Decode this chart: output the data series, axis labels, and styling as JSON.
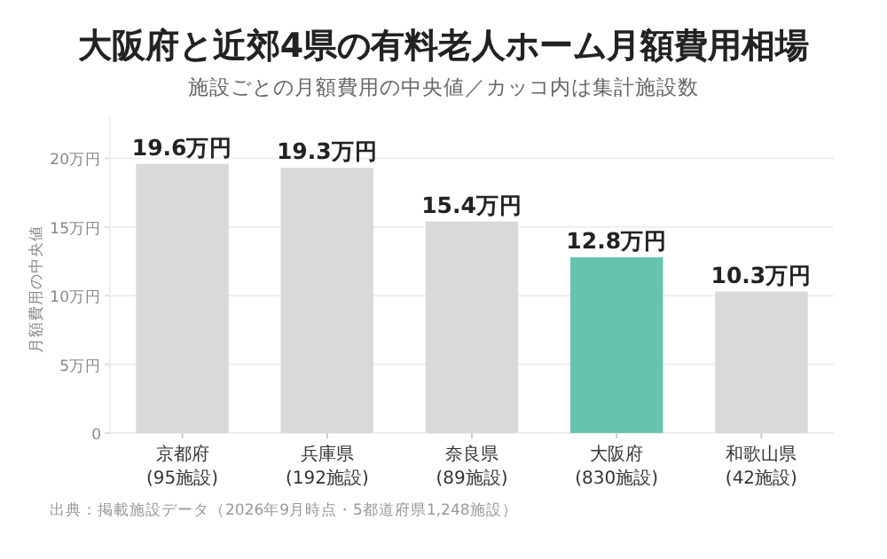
{
  "chart_data": {
    "type": "bar",
    "title": "大阪府と近郊4県の有料老人ホーム月額費用相場",
    "subtitle": "施設ごとの月額費用の中央値／カッコ内は集計施設数",
    "ylabel": "月額費用の中央値",
    "categories": [
      "京都府\n(95施設)",
      "兵庫県\n(192施設)",
      "奈良県\n(89施設)",
      "大阪府\n(830施設)",
      "和歌山県\n(42施設)"
    ],
    "values": [
      19.6,
      19.3,
      15.4,
      12.8,
      10.3
    ],
    "colors": [
      "#d9d9d9",
      "#d9d9d9",
      "#d9d9d9",
      "#66c4ad",
      "#d9d9d9"
    ],
    "value_labels": [
      "19.6万円",
      "19.3万円",
      "15.4万円",
      "12.8万円",
      "10.3万円"
    ],
    "ylim": [
      0,
      23
    ],
    "yticks": [
      0,
      {
        "value": 5,
        "label": "5万円"
      },
      {
        "value": 10,
        "label": "10万円"
      },
      {
        "value": 15,
        "label": "15万円"
      },
      {
        "value": 20,
        "label": "20万円"
      }
    ],
    "grid": "y",
    "annotations": [
      "出典：掲載施設データ（2026年9月時点・5都道府県1,248施設）"
    ]
  }
}
